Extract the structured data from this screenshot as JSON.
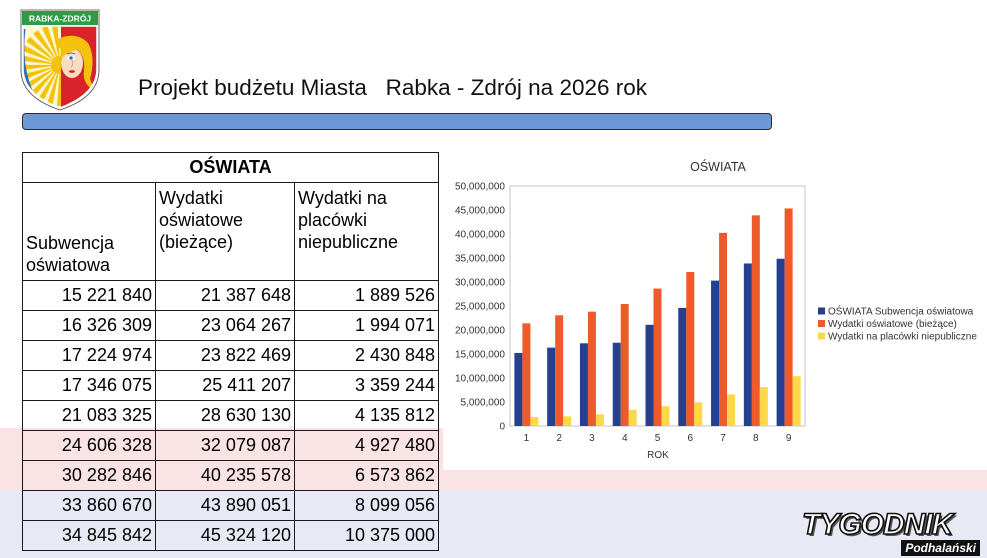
{
  "header": {
    "logo_text": "RABKA-ZDRÓJ",
    "title": "Projekt budżetu Miasta   Rabka - Zdrój na 2026 rok",
    "accent_color": "#6d98d7"
  },
  "table": {
    "title": "OŚWIATA",
    "columns": [
      "Subwencja oświatowa",
      "Wydatki oświatowe (bieżące)",
      "Wydatki na placówki niepubliczne"
    ],
    "rows": [
      [
        "15 221 840",
        "21 387 648",
        "1 889 526"
      ],
      [
        "16 326 309",
        "23 064 267",
        "1 994 071"
      ],
      [
        "17 224 974",
        "23 822 469",
        "2 430 848"
      ],
      [
        "17 346 075",
        "25 411 207",
        "3 359 244"
      ],
      [
        "21 083 325",
        "28 630 130",
        "4 135 812"
      ],
      [
        "24 606 328",
        "32 079 087",
        "4 927 480"
      ],
      [
        "30 282 846",
        "40 235 578",
        "6 573 862"
      ],
      [
        "33 860 670",
        "43 890 051",
        "8 099 056"
      ],
      [
        "34 845 842",
        "45 324 120",
        "10 375 000"
      ]
    ]
  },
  "chart_data": {
    "type": "bar",
    "title": "OŚWIATA",
    "xlabel": "ROK",
    "categories": [
      "1",
      "2",
      "3",
      "4",
      "5",
      "6",
      "7",
      "8",
      "9"
    ],
    "ylim": [
      0,
      50000000
    ],
    "y_tick_labels": [
      "0",
      "5,000,000",
      "10,000,000",
      "15,000,000",
      "20,000,000",
      "25,000,000",
      "30,000,000",
      "35,000,000",
      "40,000,000",
      "45,000,000",
      "50,000,000"
    ],
    "grid": false,
    "legend": "right",
    "series": [
      {
        "name": "OŚWIATA Subwencja oświatowa",
        "color": "#25408f",
        "values": [
          15221840,
          16326309,
          17224974,
          17346075,
          21083325,
          24606328,
          30282846,
          33860670,
          34845842
        ]
      },
      {
        "name": "Wydatki oświatowe (bieżące)",
        "color": "#ee5a2a",
        "values": [
          21387648,
          23064267,
          23822469,
          25411207,
          28630130,
          32079087,
          40235578,
          43890051,
          45324120
        ]
      },
      {
        "name": "Wydatki na placówki niepubliczne",
        "color": "#ffd84a",
        "values": [
          1889526,
          1994071,
          2430848,
          3359244,
          4135812,
          4927480,
          6573862,
          8099056,
          10375000
        ]
      }
    ]
  },
  "footer": {
    "brand_main": "TYGODNIK",
    "brand_sub": "Podhalański"
  }
}
